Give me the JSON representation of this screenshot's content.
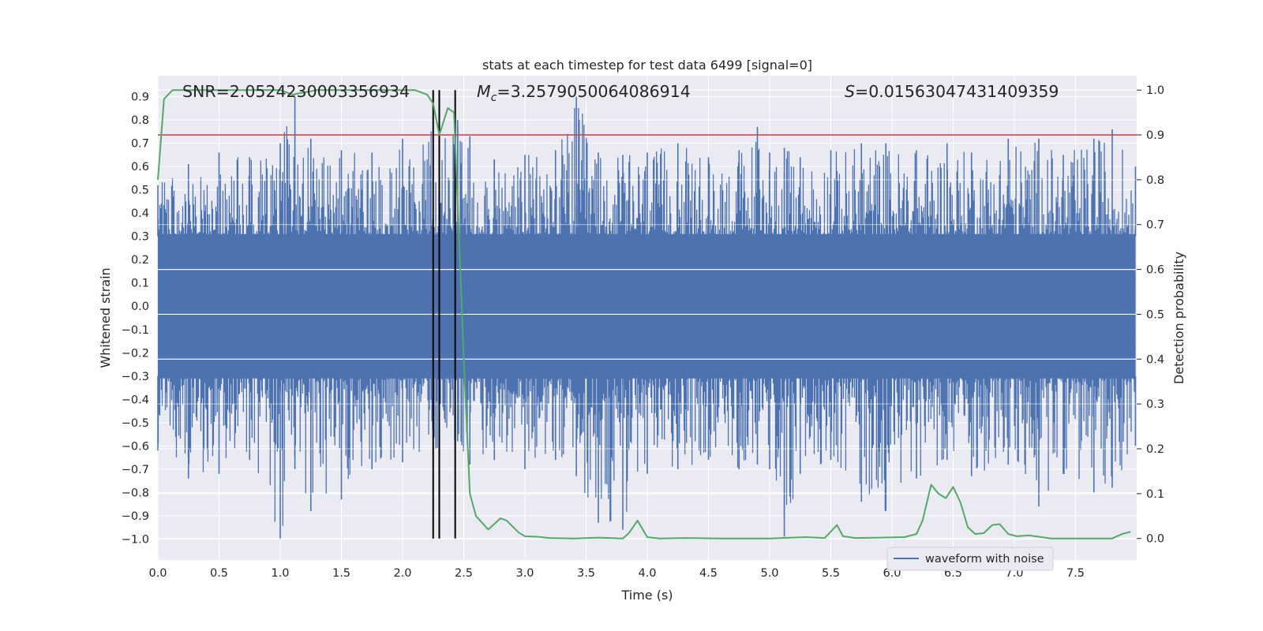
{
  "chart_data": {
    "type": "line",
    "title": "stats at each timestep for test data 6499 [signal=0]",
    "xlabel": "Time (s)",
    "ylabel": "Whitened strain",
    "ylabel_right": "Detection probability",
    "xlim": [
      0.0,
      8.0
    ],
    "ylim": [
      -1.09,
      0.99
    ],
    "ylim_right": [
      -0.048,
      1.032
    ],
    "x_ticks": [
      "0.0",
      "0.5",
      "1.0",
      "1.5",
      "2.0",
      "2.5",
      "3.0",
      "3.5",
      "4.0",
      "4.5",
      "5.0",
      "5.5",
      "6.0",
      "6.5",
      "7.0",
      "7.5"
    ],
    "y_ticks": [
      "0.9",
      "0.8",
      "0.7",
      "0.6",
      "0.5",
      "0.4",
      "0.3",
      "0.2",
      "0.1",
      "0.0",
      "-0.1",
      "-0.2",
      "-0.3",
      "-0.4",
      "-0.5",
      "-0.6",
      "-0.7",
      "-0.8",
      "-0.9",
      "-1.0"
    ],
    "y_ticks_right": [
      "1.0",
      "0.9",
      "0.8",
      "0.7",
      "0.6",
      "0.5",
      "0.4",
      "0.3",
      "0.2",
      "0.1",
      "0.0"
    ],
    "grid": true,
    "legend": {
      "placement": "lower-right",
      "entries": [
        "waveform with noise"
      ]
    },
    "annotations": {
      "snr": "SNR=2.0524230003356934",
      "mc": "=3.2579050064086914",
      "mc_symbol": "M",
      "mc_subscript": "c",
      "s": "=0.01563047431409359",
      "s_symbol": "S"
    },
    "threshold": {
      "axis": "right",
      "value": 0.9,
      "color": "#c44e52"
    },
    "vlines": [
      2.25,
      2.3,
      2.43
    ],
    "series": [
      {
        "name": "waveform with noise",
        "axis": "left",
        "color": "#4c72b0",
        "envelope": {
          "x": [
            0.0,
            0.25,
            0.5,
            0.75,
            1.0,
            1.12,
            1.25,
            1.5,
            1.75,
            2.0,
            2.25,
            2.45,
            2.55,
            2.75,
            3.0,
            3.25,
            3.42,
            3.6,
            3.8,
            4.0,
            4.25,
            4.5,
            4.75,
            4.9,
            5.0,
            5.12,
            5.25,
            5.5,
            5.75,
            5.95,
            6.2,
            6.45,
            6.65,
            6.95,
            7.2,
            7.4,
            7.65,
            7.8,
            7.99
          ],
          "upper": [
            0.52,
            0.61,
            0.66,
            0.64,
            0.7,
            0.9,
            0.72,
            0.67,
            0.66,
            0.72,
            0.76,
            0.8,
            0.73,
            0.63,
            0.65,
            0.67,
            0.9,
            0.66,
            0.65,
            0.66,
            0.7,
            0.64,
            0.67,
            0.77,
            0.66,
            0.68,
            0.64,
            0.67,
            0.7,
            0.7,
            0.67,
            0.7,
            0.66,
            0.72,
            0.72,
            0.65,
            0.72,
            0.76,
            0.6
          ],
          "lower": [
            -0.62,
            -0.74,
            -0.72,
            -0.66,
            -1.0,
            -0.7,
            -0.88,
            -0.83,
            -0.7,
            -0.67,
            -0.65,
            -0.58,
            -0.68,
            -0.66,
            -0.7,
            -0.66,
            -0.73,
            -0.93,
            -0.96,
            -0.72,
            -0.7,
            -0.66,
            -0.7,
            -0.68,
            -0.7,
            -0.99,
            -0.72,
            -0.66,
            -0.84,
            -0.88,
            -0.74,
            -0.66,
            -0.73,
            -0.68,
            -0.86,
            -0.72,
            -0.8,
            -0.78,
            -0.6
          ]
        }
      },
      {
        "name": "detection probability",
        "axis": "right",
        "color": "#55a868",
        "x": [
          0.0,
          0.05,
          0.12,
          0.3,
          0.5,
          0.8,
          1.0,
          1.1,
          1.3,
          1.6,
          1.9,
          2.1,
          2.2,
          2.25,
          2.3,
          2.37,
          2.42,
          2.45,
          2.5,
          2.55,
          2.6,
          2.7,
          2.8,
          2.85,
          2.95,
          3.0,
          3.1,
          3.2,
          3.4,
          3.6,
          3.8,
          3.85,
          3.92,
          4.0,
          4.1,
          4.3,
          4.6,
          5.0,
          5.3,
          5.45,
          5.55,
          5.6,
          5.7,
          5.9,
          6.1,
          6.2,
          6.25,
          6.32,
          6.38,
          6.44,
          6.5,
          6.56,
          6.62,
          6.68,
          6.75,
          6.82,
          6.88,
          6.95,
          7.02,
          7.12,
          7.3,
          7.55,
          7.8,
          7.88,
          7.95
        ],
        "values": [
          0.8,
          0.98,
          1.0,
          1.0,
          1.0,
          1.0,
          1.0,
          0.99,
          1.0,
          1.0,
          1.0,
          1.0,
          0.99,
          0.97,
          0.9,
          0.96,
          0.95,
          0.75,
          0.4,
          0.1,
          0.05,
          0.02,
          0.045,
          0.04,
          0.013,
          0.005,
          0.004,
          0.001,
          0.0,
          0.002,
          0.0,
          0.012,
          0.04,
          0.003,
          0.0,
          0.001,
          0.0,
          0.0,
          0.003,
          0.001,
          0.03,
          0.005,
          0.001,
          0.002,
          0.003,
          0.01,
          0.04,
          0.12,
          0.1,
          0.09,
          0.115,
          0.08,
          0.025,
          0.01,
          0.012,
          0.03,
          0.032,
          0.01,
          0.005,
          0.007,
          0.0,
          0.0,
          0.0,
          0.01,
          0.015
        ]
      }
    ]
  }
}
